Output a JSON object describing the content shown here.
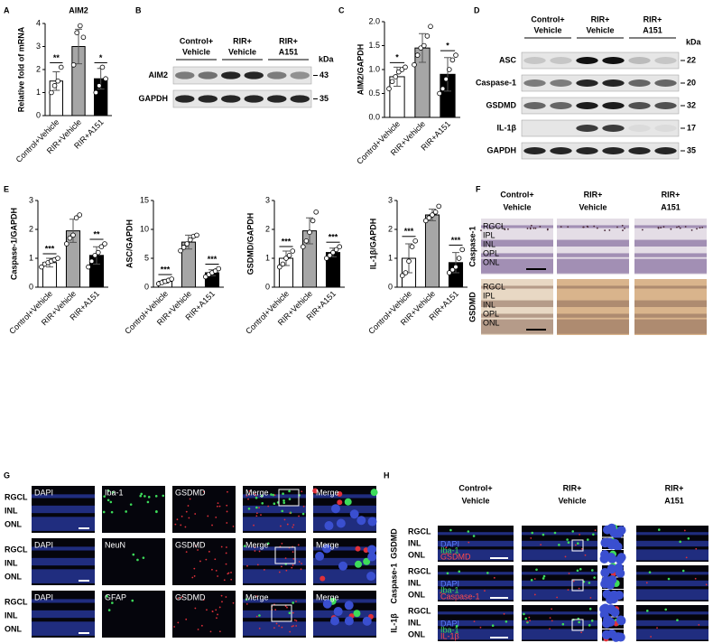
{
  "panel_letters": [
    "A",
    "B",
    "C",
    "D",
    "E",
    "F",
    "G",
    "H"
  ],
  "chart_data": [
    {
      "type": "bar",
      "title": "AIM2",
      "y_label": "Relative fold of mRNA",
      "categories": [
        "Control+Vehicle",
        "RIR+Vehicle",
        "RIR+A151"
      ],
      "values": [
        1.5,
        3.0,
        1.6
      ],
      "errors": [
        0.4,
        0.75,
        0.45
      ],
      "points": [
        [
          1.0,
          1.3,
          1.5,
          2.1
        ],
        [
          2.2,
          3.6,
          3.9,
          3.4
        ],
        [
          1.0,
          1.3,
          2.1,
          1.6
        ]
      ],
      "colors": [
        "#ffffff",
        "#a6a6a6",
        "#000000"
      ],
      "significance": [
        "**",
        null,
        "*"
      ],
      "ylim": [
        0,
        4
      ],
      "yticks": [
        0,
        1,
        2,
        3,
        4
      ]
    },
    {
      "type": "bar",
      "y_label": "AIM2/GAPDH",
      "categories": [
        "Control+Vehicle",
        "RIR+Vehicle",
        "RIR+A151"
      ],
      "values": [
        0.85,
        1.45,
        0.9
      ],
      "errors": [
        0.2,
        0.3,
        0.35
      ],
      "points": [
        [
          0.6,
          0.75,
          0.85,
          0.95,
          1.0,
          1.05
        ],
        [
          1.1,
          1.3,
          1.45,
          1.5,
          1.7,
          1.9
        ],
        [
          0.5,
          0.6,
          0.8,
          1.0,
          1.2,
          1.3
        ]
      ],
      "colors": [
        "#ffffff",
        "#a6a6a6",
        "#000000"
      ],
      "significance": [
        "*",
        null,
        "*"
      ],
      "ylim": [
        0,
        2
      ],
      "yticks": [
        {
          "value": 0,
          "label": "0.0"
        },
        {
          "value": 0.5,
          "label": "0.5"
        },
        {
          "value": 1,
          "label": "1.0"
        },
        {
          "value": 1.5,
          "label": "1.5"
        },
        {
          "value": 2,
          "label": "2.0"
        }
      ]
    },
    {
      "type": "bar",
      "y_label": "Caspase-1/GAPDH",
      "categories": [
        "Control+Vehicle",
        "RIR+Vehicle",
        "RIR+A151"
      ],
      "values": [
        0.85,
        1.95,
        1.1
      ],
      "errors": [
        0.15,
        0.4,
        0.3
      ],
      "points": [
        [
          0.7,
          0.8,
          0.85,
          0.9,
          0.95,
          1.0
        ],
        [
          1.5,
          1.7,
          1.8,
          2.4,
          2.5
        ],
        [
          0.7,
          0.9,
          1.1,
          1.2,
          1.4,
          1.5
        ]
      ],
      "colors": [
        "#ffffff",
        "#a6a6a6",
        "#000000"
      ],
      "significance": [
        "***",
        null,
        "**"
      ],
      "ylim": [
        0,
        3
      ],
      "yticks": [
        0,
        1,
        2,
        3
      ]
    },
    {
      "type": "bar",
      "y_label": "ASC/GAPDH",
      "categories": [
        "Control+Vehicle",
        "RIR+Vehicle",
        "RIR+A151"
      ],
      "values": [
        1.0,
        7.8,
        2.5
      ],
      "errors": [
        0.3,
        1.2,
        0.5
      ],
      "points": [
        [
          0.6,
          0.8,
          1.0,
          1.2,
          1.4
        ],
        [
          6.3,
          6.9,
          7.5,
          8.2,
          8.8,
          9.0
        ],
        [
          1.8,
          2.2,
          2.5,
          2.8,
          3.2
        ]
      ],
      "colors": [
        "#ffffff",
        "#a6a6a6",
        "#000000"
      ],
      "significance": [
        "***",
        null,
        "***"
      ],
      "ylim": [
        0,
        15
      ],
      "yticks": [
        0,
        5,
        10,
        15
      ]
    },
    {
      "type": "bar",
      "y_label": "GSDMD/GAPDH",
      "categories": [
        "Control+Vehicle",
        "RIR+Vehicle",
        "RIR+A151"
      ],
      "values": [
        1.0,
        1.95,
        1.2
      ],
      "errors": [
        0.25,
        0.45,
        0.15
      ],
      "points": [
        [
          0.7,
          0.8,
          1.0,
          1.1,
          1.25
        ],
        [
          1.4,
          1.6,
          1.9,
          2.3,
          2.6
        ],
        [
          1.0,
          1.1,
          1.2,
          1.3,
          1.4
        ]
      ],
      "colors": [
        "#ffffff",
        "#a6a6a6",
        "#000000"
      ],
      "significance": [
        "***",
        null,
        "***"
      ],
      "ylim": [
        0,
        3
      ],
      "yticks": [
        0,
        1,
        2,
        3
      ]
    },
    {
      "type": "bar",
      "y_label": "IL-1β/GAPDH",
      "categories": [
        "Control+Vehicle",
        "RIR+Vehicle",
        "RIR+A151"
      ],
      "values": [
        1.0,
        2.5,
        0.85
      ],
      "errors": [
        0.5,
        0.2,
        0.35
      ],
      "points": [
        [
          0.4,
          0.5,
          0.9,
          1.4,
          1.6
        ],
        [
          2.3,
          2.4,
          2.5,
          2.6,
          2.8
        ],
        [
          0.5,
          0.6,
          0.7,
          1.0,
          1.3
        ]
      ],
      "colors": [
        "#ffffff",
        "#a6a6a6",
        "#000000"
      ],
      "significance": [
        "***",
        null,
        "***"
      ],
      "ylim": [
        0,
        3
      ],
      "yticks": [
        0,
        1,
        2,
        3
      ]
    }
  ],
  "blot_b": {
    "groups": [
      [
        "Control+",
        "Vehicle"
      ],
      [
        "RIR+",
        "Vehicle"
      ],
      [
        "RIR+",
        "A151"
      ]
    ],
    "kda_title": "kDa",
    "rows": [
      {
        "label": "AIM2",
        "kda": "43"
      },
      {
        "label": "GAPDH",
        "kda": "35"
      }
    ]
  },
  "blot_d": {
    "groups": [
      [
        "Control+",
        "Vehicle"
      ],
      [
        "RIR+",
        "Vehicle"
      ],
      [
        "RIR+",
        "A151"
      ]
    ],
    "kda_title": "kDa",
    "rows": [
      {
        "label": "ASC",
        "kda": "22"
      },
      {
        "label": "Caspase-1",
        "kda": "20"
      },
      {
        "label": "GSDMD",
        "kda": "32"
      },
      {
        "label": "IL-1β",
        "kda": "17"
      },
      {
        "label": "GAPDH",
        "kda": "35"
      }
    ]
  },
  "ihc_f": {
    "groups": [
      [
        "Control+",
        "Vehicle"
      ],
      [
        "RIR+",
        "Vehicle"
      ],
      [
        "RIR+",
        "A151"
      ]
    ],
    "rows": [
      "Caspase-1",
      "GSDMD"
    ],
    "layers": [
      "RGCL",
      "IPL",
      "INL",
      "OPL",
      "ONL"
    ]
  },
  "if_g": {
    "rows": [
      {
        "stains": [
          "DAPI",
          "Iba-1",
          "GSDMD",
          "Merge",
          "Merge"
        ]
      },
      {
        "stains": [
          "DAPI",
          "NeuN",
          "GSDMD",
          "Merge",
          "Merge"
        ]
      },
      {
        "stains": [
          "DAPI",
          "GFAP",
          "GSDMD",
          "Merge",
          "Merge"
        ]
      }
    ],
    "layers": [
      "RGCL",
      "INL",
      "ONL"
    ]
  },
  "if_h": {
    "groups": [
      [
        "Control+",
        "Vehicle"
      ],
      [
        "RIR+",
        "Vehicle"
      ],
      [
        "RIR+",
        "A151"
      ]
    ],
    "rows": [
      {
        "label": "GSDMD",
        "legend": [
          "DAPI",
          "Iba-1",
          "GSDMD"
        ]
      },
      {
        "label": "Caspase-1",
        "legend": [
          "DAPI",
          "Iba-1",
          "Caspase-1"
        ]
      },
      {
        "label": "IL-1β",
        "legend": [
          "DAPI",
          "Iba-1",
          "IL-1β"
        ]
      }
    ],
    "layers": [
      "RGCL",
      "INL",
      "ONL"
    ]
  }
}
